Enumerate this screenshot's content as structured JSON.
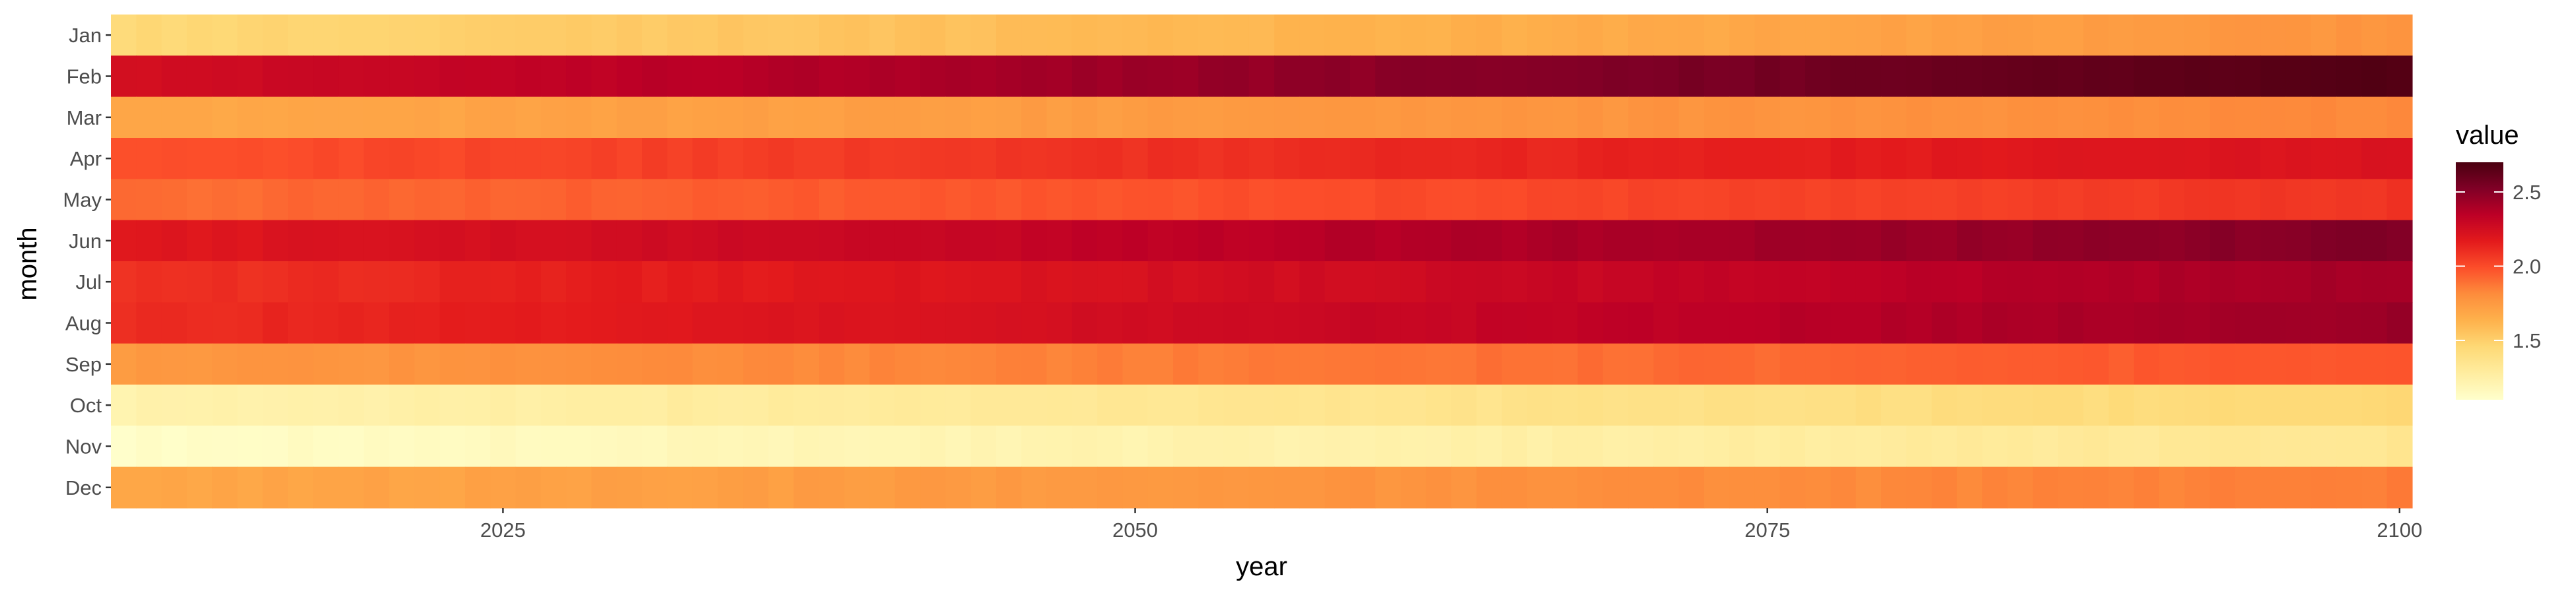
{
  "chart_data": {
    "type": "heatmap",
    "x_field": "year",
    "y_field": "month",
    "xlabel": "year",
    "ylabel": "month",
    "legend_title": "value",
    "legend_position": "right",
    "grid": false,
    "x_range": [
      2010,
      2100
    ],
    "x_ticks": [
      "2025",
      "2050",
      "2075",
      "2100"
    ],
    "months": [
      "Jan",
      "Feb",
      "Mar",
      "Apr",
      "May",
      "Jun",
      "Jul",
      "Aug",
      "Sep",
      "Oct",
      "Nov",
      "Dec"
    ],
    "color_range": [
      1.1,
      2.7
    ],
    "legend_ticks": [
      "1.5",
      "2.0",
      "2.5"
    ],
    "colors": [
      "#FFFFCC",
      "#FFEDA0",
      "#FED976",
      "#FEB24C",
      "#FD8D3C",
      "#FC4E2A",
      "#E31A1C",
      "#BD0026",
      "#800026",
      "#4A0010"
    ],
    "series": [
      {
        "name": "Jan",
        "start": 1.45,
        "end": 1.78
      },
      {
        "name": "Feb",
        "start": 2.25,
        "end": 2.68
      },
      {
        "name": "Mar",
        "start": 1.68,
        "end": 1.82
      },
      {
        "name": "Apr",
        "start": 1.98,
        "end": 2.22
      },
      {
        "name": "May",
        "start": 1.9,
        "end": 2.08
      },
      {
        "name": "Jun",
        "start": 2.18,
        "end": 2.52
      },
      {
        "name": "Jul",
        "start": 2.08,
        "end": 2.42
      },
      {
        "name": "Aug",
        "start": 2.1,
        "end": 2.45
      },
      {
        "name": "Sep",
        "start": 1.75,
        "end": 1.98
      },
      {
        "name": "Oct",
        "start": 1.22,
        "end": 1.46
      },
      {
        "name": "Nov",
        "start": 1.12,
        "end": 1.34
      },
      {
        "name": "Dec",
        "start": 1.68,
        "end": 1.86
      }
    ]
  }
}
